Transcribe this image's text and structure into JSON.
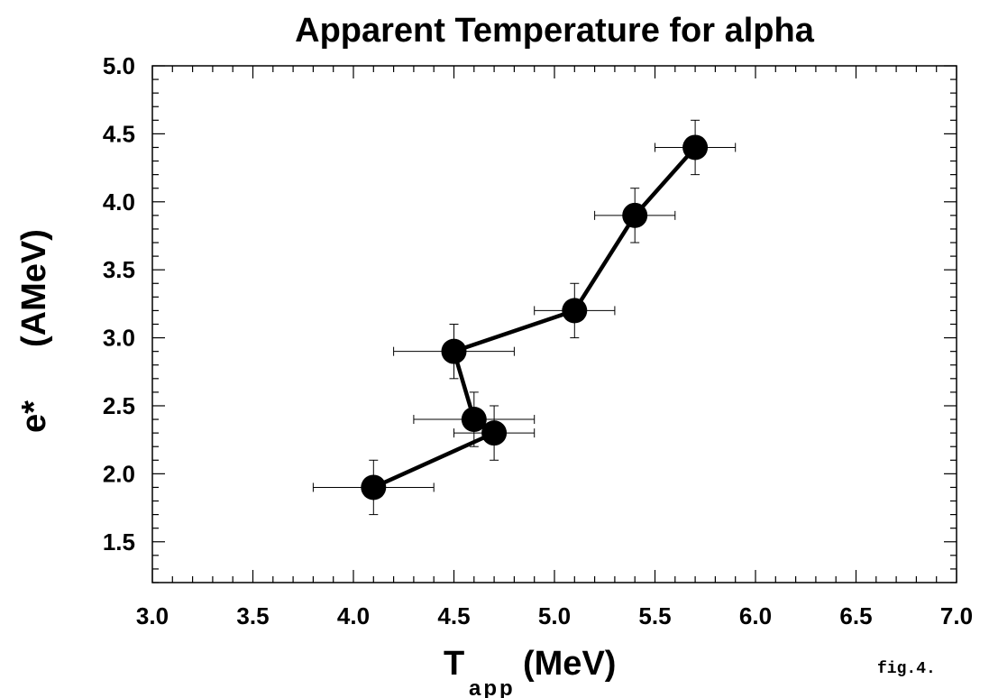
{
  "chart_data": {
    "type": "scatter",
    "title": "Apparent Temperature for alpha",
    "xlabel": {
      "main": "T",
      "sub": "app",
      "unit": "(MeV)"
    },
    "ylabel": {
      "main": "e*",
      "unit": "(AMeV)"
    },
    "xlim": [
      3.0,
      7.0
    ],
    "ylim": [
      1.2,
      5.0
    ],
    "xticks": [
      "3.0",
      "3.5",
      "4.0",
      "4.5",
      "5.0",
      "5.5",
      "6.0",
      "6.5",
      "7.0"
    ],
    "yticks": [
      "1.5",
      "2.0",
      "2.5",
      "3.0",
      "3.5",
      "4.0",
      "4.5",
      "5.0"
    ],
    "connected": true,
    "series": [
      {
        "points": [
          {
            "x": 4.1,
            "y": 1.9,
            "xerr": 0.3,
            "yerr": 0.2
          },
          {
            "x": 4.7,
            "y": 2.3,
            "xerr": 0.2,
            "yerr": 0.2
          },
          {
            "x": 4.6,
            "y": 2.4,
            "xerr": 0.3,
            "yerr": 0.2
          },
          {
            "x": 4.5,
            "y": 2.9,
            "xerr": 0.3,
            "yerr": 0.2
          },
          {
            "x": 5.1,
            "y": 3.2,
            "xerr": 0.2,
            "yerr": 0.2
          },
          {
            "x": 5.4,
            "y": 3.9,
            "xerr": 0.2,
            "yerr": 0.2
          },
          {
            "x": 5.7,
            "y": 4.4,
            "xerr": 0.2,
            "yerr": 0.2
          }
        ]
      }
    ],
    "grid": false,
    "annotation": "fig.4."
  }
}
